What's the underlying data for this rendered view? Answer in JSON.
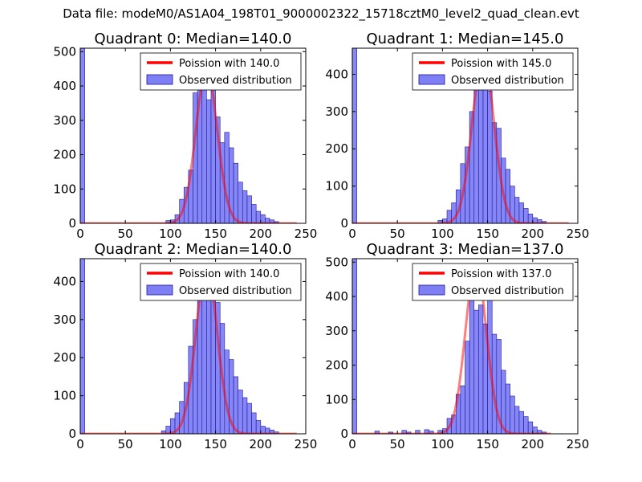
{
  "figure": {
    "suptitle": "Data file: modeM0/AS1A04_198T01_9000002322_15718cztM0_level2_quad_clean.evt"
  },
  "colors": {
    "hist_fill": "#7f7ff5",
    "hist_edge": "#1a1a9a",
    "poisson_line": "#ff0000"
  },
  "chart_data": [
    {
      "type": "bar",
      "title": "Quadrant 0: Median=140.0",
      "legend": {
        "placement": "top-right",
        "line_label": "Poission with 140.0",
        "bar_label": "Observed distribution"
      },
      "xlim": [
        0,
        250
      ],
      "ylim": [
        0,
        510
      ],
      "xticks": [
        0,
        50,
        100,
        150,
        200,
        250
      ],
      "yticks": [
        0,
        100,
        200,
        300,
        400,
        500
      ],
      "bin_width": 5,
      "bins": [
        [
          0,
          510
        ],
        [
          95,
          8
        ],
        [
          100,
          10
        ],
        [
          105,
          25
        ],
        [
          110,
          70
        ],
        [
          115,
          105
        ],
        [
          120,
          155
        ],
        [
          125,
          380
        ],
        [
          130,
          390
        ],
        [
          135,
          410
        ],
        [
          140,
          360
        ],
        [
          145,
          410
        ],
        [
          150,
          310
        ],
        [
          155,
          235
        ],
        [
          160,
          265
        ],
        [
          165,
          220
        ],
        [
          170,
          175
        ],
        [
          175,
          120
        ],
        [
          180,
          95
        ],
        [
          185,
          80
        ],
        [
          190,
          55
        ],
        [
          195,
          35
        ],
        [
          200,
          25
        ],
        [
          205,
          15
        ],
        [
          210,
          10
        ],
        [
          215,
          5
        ]
      ],
      "poisson_mean": 140.0,
      "poisson_peak": 450,
      "poisson_xrange": [
        0,
        240
      ]
    },
    {
      "type": "bar",
      "title": "Quadrant 1: Median=145.0",
      "legend": {
        "placement": "top-right",
        "line_label": "Poission with 145.0",
        "bar_label": "Observed distribution"
      },
      "xlim": [
        0,
        250
      ],
      "ylim": [
        0,
        470
      ],
      "xticks": [
        0,
        50,
        100,
        150,
        200,
        250
      ],
      "yticks": [
        0,
        100,
        200,
        300,
        400
      ],
      "bin_width": 5,
      "bins": [
        [
          0,
          470
        ],
        [
          95,
          8
        ],
        [
          100,
          12
        ],
        [
          105,
          35
        ],
        [
          110,
          55
        ],
        [
          115,
          90
        ],
        [
          120,
          160
        ],
        [
          125,
          205
        ],
        [
          130,
          300
        ],
        [
          135,
          390
        ],
        [
          140,
          420
        ],
        [
          145,
          430
        ],
        [
          150,
          355
        ],
        [
          155,
          270
        ],
        [
          160,
          255
        ],
        [
          165,
          175
        ],
        [
          170,
          145
        ],
        [
          175,
          100
        ],
        [
          180,
          70
        ],
        [
          185,
          55
        ],
        [
          190,
          40
        ],
        [
          195,
          25
        ],
        [
          200,
          15
        ],
        [
          205,
          10
        ],
        [
          210,
          5
        ]
      ],
      "poisson_mean": 145.0,
      "poisson_peak": 450,
      "poisson_xrange": [
        0,
        240
      ]
    },
    {
      "type": "bar",
      "title": "Quadrant 2: Median=140.0",
      "legend": {
        "placement": "top-right",
        "line_label": "Poission with 140.0",
        "bar_label": "Observed distribution"
      },
      "xlim": [
        0,
        250
      ],
      "ylim": [
        0,
        460
      ],
      "xticks": [
        0,
        50,
        100,
        150,
        200,
        250
      ],
      "yticks": [
        0,
        100,
        200,
        300,
        400
      ],
      "bin_width": 5,
      "bins": [
        [
          0,
          460
        ],
        [
          90,
          8
        ],
        [
          95,
          20
        ],
        [
          100,
          40
        ],
        [
          105,
          55
        ],
        [
          110,
          85
        ],
        [
          115,
          135
        ],
        [
          120,
          230
        ],
        [
          125,
          300
        ],
        [
          130,
          375
        ],
        [
          135,
          425
        ],
        [
          140,
          395
        ],
        [
          145,
          410
        ],
        [
          150,
          345
        ],
        [
          155,
          290
        ],
        [
          160,
          220
        ],
        [
          165,
          195
        ],
        [
          170,
          150
        ],
        [
          175,
          115
        ],
        [
          180,
          95
        ],
        [
          185,
          80
        ],
        [
          190,
          55
        ],
        [
          195,
          35
        ],
        [
          200,
          20
        ],
        [
          205,
          15
        ],
        [
          210,
          10
        ],
        [
          215,
          5
        ]
      ],
      "poisson_mean": 140.0,
      "poisson_peak": 440,
      "poisson_xrange": [
        0,
        240
      ]
    },
    {
      "type": "bar",
      "title": "Quadrant 3: Median=137.0",
      "legend": {
        "placement": "top-right",
        "line_label": "Poission with 137.0",
        "bar_label": "Observed distribution"
      },
      "xlim": [
        0,
        250
      ],
      "ylim": [
        0,
        510
      ],
      "xticks": [
        0,
        50,
        100,
        150,
        200,
        250
      ],
      "yticks": [
        0,
        100,
        200,
        300,
        400,
        500
      ],
      "bin_width": 5,
      "bins": [
        [
          0,
          510
        ],
        [
          25,
          8
        ],
        [
          40,
          5
        ],
        [
          55,
          10
        ],
        [
          60,
          5
        ],
        [
          70,
          10
        ],
        [
          80,
          12
        ],
        [
          85,
          8
        ],
        [
          95,
          10
        ],
        [
          100,
          15
        ],
        [
          105,
          45
        ],
        [
          110,
          55
        ],
        [
          115,
          115
        ],
        [
          120,
          140
        ],
        [
          125,
          270
        ],
        [
          130,
          390
        ],
        [
          135,
          360
        ],
        [
          140,
          375
        ],
        [
          145,
          320
        ],
        [
          150,
          405
        ],
        [
          155,
          290
        ],
        [
          160,
          275
        ],
        [
          165,
          185
        ],
        [
          170,
          145
        ],
        [
          175,
          110
        ],
        [
          180,
          80
        ],
        [
          185,
          65
        ],
        [
          190,
          50
        ],
        [
          195,
          35
        ],
        [
          200,
          20
        ],
        [
          205,
          10
        ],
        [
          210,
          5
        ]
      ],
      "poisson_mean": 137.0,
      "poisson_peak": 490,
      "poisson_xrange": [
        0,
        220
      ]
    }
  ]
}
